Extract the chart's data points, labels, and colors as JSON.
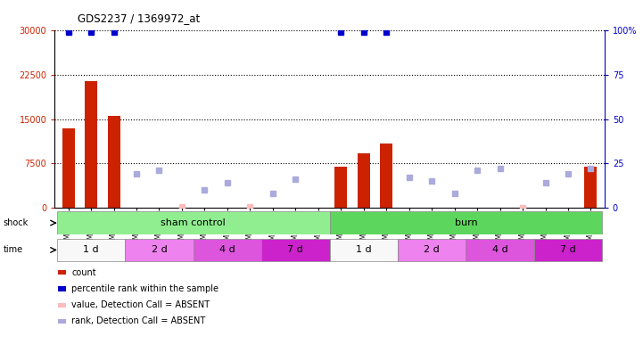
{
  "title": "GDS2237 / 1369972_at",
  "samples": [
    "GSM32414",
    "GSM32415",
    "GSM32416",
    "GSM32423",
    "GSM32424",
    "GSM32425",
    "GSM32429",
    "GSM32430",
    "GSM32431",
    "GSM32435",
    "GSM32436",
    "GSM32437",
    "GSM32417",
    "GSM32418",
    "GSM32419",
    "GSM32420",
    "GSM32421",
    "GSM32422",
    "GSM32426",
    "GSM32427",
    "GSM32428",
    "GSM32432",
    "GSM32433",
    "GSM32434"
  ],
  "count_values": [
    13500,
    21500,
    15500,
    0,
    0,
    0,
    0,
    0,
    0,
    0,
    0,
    0,
    7000,
    9200,
    10800,
    0,
    0,
    0,
    0,
    0,
    0,
    0,
    0,
    7000
  ],
  "percentile_rank": [
    99,
    99,
    99,
    null,
    null,
    null,
    null,
    null,
    null,
    null,
    null,
    null,
    99,
    99,
    99,
    null,
    null,
    null,
    null,
    null,
    null,
    null,
    null,
    null
  ],
  "absent_rank": [
    null,
    null,
    null,
    19,
    21,
    null,
    10,
    14,
    null,
    8,
    16,
    null,
    null,
    null,
    null,
    17,
    15,
    8,
    21,
    22,
    null,
    14,
    19,
    22
  ],
  "absent_value": [
    null,
    null,
    null,
    null,
    null,
    3,
    null,
    null,
    2,
    null,
    null,
    null,
    null,
    null,
    null,
    null,
    null,
    null,
    null,
    null,
    1,
    null,
    null,
    null
  ],
  "shock_groups": [
    {
      "label": "sham control",
      "start": 0,
      "end": 11,
      "color": "#90ee90"
    },
    {
      "label": "burn",
      "start": 12,
      "end": 23,
      "color": "#5cd65c"
    }
  ],
  "time_groups": [
    {
      "label": "1 d",
      "start": 0,
      "end": 2,
      "color": "#f5f5f5"
    },
    {
      "label": "2 d",
      "start": 3,
      "end": 5,
      "color": "#ee82ee"
    },
    {
      "label": "4 d",
      "start": 6,
      "end": 8,
      "color": "#dd66dd"
    },
    {
      "label": "7 d",
      "start": 9,
      "end": 11,
      "color": "#cc44cc"
    },
    {
      "label": "1 d",
      "start": 12,
      "end": 14,
      "color": "#f5f5f5"
    },
    {
      "label": "2 d",
      "start": 15,
      "end": 17,
      "color": "#ee82ee"
    },
    {
      "label": "4 d",
      "start": 18,
      "end": 20,
      "color": "#dd66dd"
    },
    {
      "label": "7 d",
      "start": 21,
      "end": 23,
      "color": "#cc44cc"
    }
  ],
  "ylim_left": [
    0,
    30000
  ],
  "ylim_right": [
    0,
    100
  ],
  "left_ticks": [
    0,
    7500,
    15000,
    22500,
    30000
  ],
  "right_ticks": [
    0,
    25,
    50,
    75,
    100
  ],
  "bar_color": "#cc2200",
  "percentile_color": "#0000cc",
  "absent_rank_color": "#aaaadd",
  "absent_value_color": "#ffbbbb",
  "bg_color": "#ffffff",
  "xticklabels_bg": "#e8e8e8"
}
